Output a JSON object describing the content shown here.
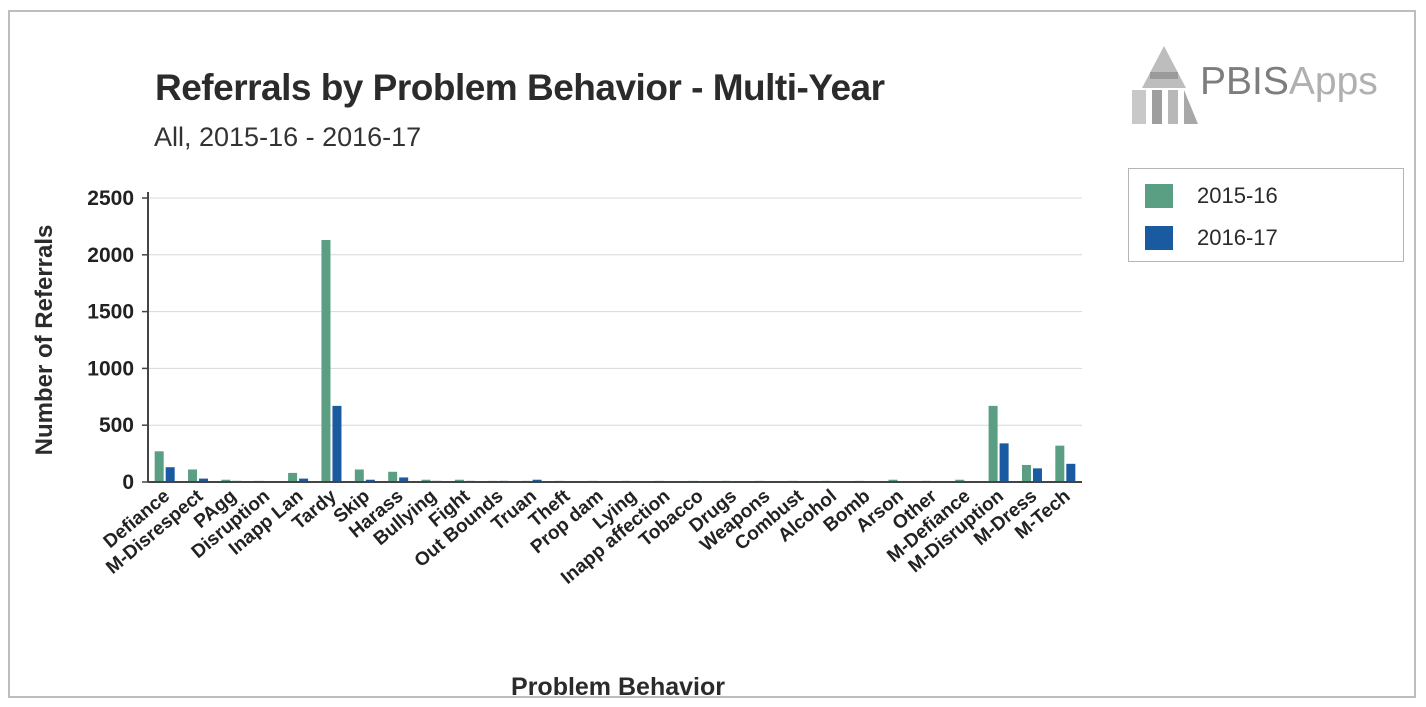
{
  "chart_data": {
    "type": "bar",
    "title": "Referrals by Problem Behavior - Multi-Year",
    "subtitle": "All, 2015-16 - 2016-17",
    "xlabel": "Problem Behavior",
    "ylabel": "Number of Referrals",
    "ylim": [
      0,
      2500
    ],
    "yticks": [
      0,
      500,
      1000,
      1500,
      2000,
      2500
    ],
    "grid": true,
    "legend_position": "right",
    "categories": [
      "Defiance",
      "M-Disrespect",
      "PAgg",
      "Disruption",
      "Inapp Lan",
      "Tardy",
      "Skip",
      "Harass",
      "Bullying",
      "Fight",
      "Out Bounds",
      "Truan",
      "Theft",
      "Prop dam",
      "Lying",
      "Inapp affection",
      "Tobacco",
      "Drugs",
      "Weapons",
      "Combust",
      "Alcohol",
      "Bomb",
      "Arson",
      "Other",
      "M-Defiance",
      "M-Disruption",
      "M-Dress",
      "M-Tech"
    ],
    "series": [
      {
        "name": "2015-16",
        "color": "#5a9e83",
        "values": [
          270,
          110,
          20,
          10,
          80,
          2130,
          110,
          90,
          20,
          20,
          10,
          10,
          10,
          10,
          10,
          10,
          10,
          10,
          10,
          10,
          10,
          10,
          20,
          10,
          20,
          670,
          150,
          320
        ]
      },
      {
        "name": "2016-17",
        "color": "#1a5aa0",
        "values": [
          130,
          30,
          10,
          5,
          30,
          670,
          20,
          40,
          10,
          10,
          10,
          20,
          5,
          5,
          5,
          5,
          5,
          5,
          5,
          5,
          5,
          5,
          5,
          5,
          5,
          340,
          120,
          160
        ]
      }
    ]
  },
  "logo": {
    "name": "PBISApps",
    "part1": "PBIS",
    "part2": "Apps"
  }
}
